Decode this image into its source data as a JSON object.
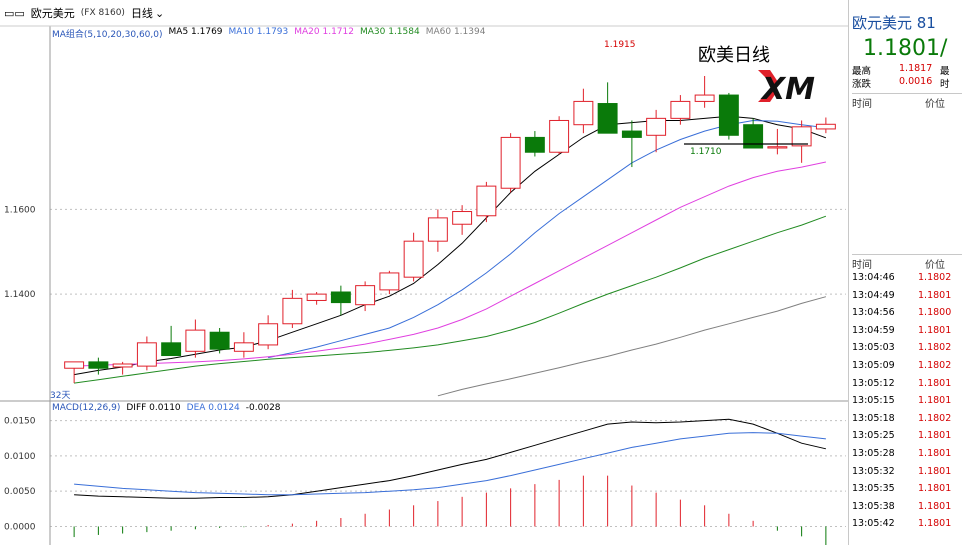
{
  "header": {
    "window_icon": "window-icon",
    "title": "欧元美元",
    "symbol": "(FX 8160)",
    "period": "日线"
  },
  "ma_legend": {
    "group_label": "MA组合(5,10,20,30,60,0)",
    "items": [
      {
        "label": "MA5 1.1769",
        "color": "#000000"
      },
      {
        "label": "MA10 1.1793",
        "color": "#3a6fd8"
      },
      {
        "label": "MA20 1.1712",
        "color": "#e040e0"
      },
      {
        "label": "MA30 1.1584",
        "color": "#228b22"
      },
      {
        "label": "MA60 1.1394",
        "color": "#808080"
      }
    ]
  },
  "macd_legend": {
    "group_label": "MACD(12,26,9)",
    "items": [
      {
        "label": "DIFF 0.0110",
        "color": "#000000"
      },
      {
        "label": "DEA 0.0124",
        "color": "#3a6fd8"
      },
      {
        "label": "-0.0028",
        "color": "#000000"
      }
    ]
  },
  "annotations": {
    "high_label": "1.1915",
    "low_label": "1.1710",
    "days_label": "32天",
    "overlay_title": "欧美日线",
    "logo_text": "XM"
  },
  "quote": {
    "name": "欧元美元 81",
    "price": "1.1801/",
    "high_label": "最高",
    "high_value": "1.1817",
    "high_extra": "最",
    "change_label": "涨跌",
    "change_value": "0.0016",
    "change_extra": "时",
    "col_time": "时间",
    "col_price": "价位"
  },
  "ticks": {
    "col_time": "时间",
    "col_price": "价位",
    "rows": [
      {
        "time": "13:04:46",
        "price": "1.1802"
      },
      {
        "time": "13:04:49",
        "price": "1.1801"
      },
      {
        "time": "13:04:56",
        "price": "1.1800"
      },
      {
        "time": "13:04:59",
        "price": "1.1801"
      },
      {
        "time": "13:05:03",
        "price": "1.1802"
      },
      {
        "time": "13:05:09",
        "price": "1.1802"
      },
      {
        "time": "13:05:12",
        "price": "1.1801"
      },
      {
        "time": "13:05:15",
        "price": "1.1801"
      },
      {
        "time": "13:05:18",
        "price": "1.1802"
      },
      {
        "time": "13:05:25",
        "price": "1.1801"
      },
      {
        "time": "13:05:28",
        "price": "1.1801"
      },
      {
        "time": "13:05:32",
        "price": "1.1801"
      },
      {
        "time": "13:05:35",
        "price": "1.1801"
      },
      {
        "time": "13:05:38",
        "price": "1.1801"
      },
      {
        "time": "13:05:42",
        "price": "1.1801"
      }
    ]
  },
  "colors": {
    "up": "#e0202a",
    "down": "#0a7a0a",
    "grid": "#c0c0c0"
  },
  "chart_data": [
    {
      "type": "candlestick",
      "title": "",
      "xlabel": "",
      "ylabel": "",
      "ylim": [
        1.115,
        1.2
      ],
      "yticks": [
        "1.1400",
        "1.1600"
      ],
      "grid": true,
      "candles": [
        {
          "o": 1.1225,
          "h": 1.124,
          "l": 1.119,
          "c": 1.124
        },
        {
          "o": 1.124,
          "h": 1.125,
          "l": 1.121,
          "c": 1.1225
        },
        {
          "o": 1.1228,
          "h": 1.124,
          "l": 1.121,
          "c": 1.1235
        },
        {
          "o": 1.123,
          "h": 1.13,
          "l": 1.122,
          "c": 1.1285
        },
        {
          "o": 1.1285,
          "h": 1.1325,
          "l": 1.126,
          "c": 1.1255
        },
        {
          "o": 1.1265,
          "h": 1.134,
          "l": 1.125,
          "c": 1.1315
        },
        {
          "o": 1.131,
          "h": 1.132,
          "l": 1.126,
          "c": 1.127
        },
        {
          "o": 1.1265,
          "h": 1.131,
          "l": 1.125,
          "c": 1.1285
        },
        {
          "o": 1.128,
          "h": 1.135,
          "l": 1.127,
          "c": 1.133
        },
        {
          "o": 1.133,
          "h": 1.141,
          "l": 1.132,
          "c": 1.139
        },
        {
          "o": 1.1385,
          "h": 1.1405,
          "l": 1.1375,
          "c": 1.14
        },
        {
          "o": 1.1405,
          "h": 1.142,
          "l": 1.135,
          "c": 1.138
        },
        {
          "o": 1.1375,
          "h": 1.143,
          "l": 1.136,
          "c": 1.142
        },
        {
          "o": 1.141,
          "h": 1.1455,
          "l": 1.14,
          "c": 1.145
        },
        {
          "o": 1.144,
          "h": 1.1545,
          "l": 1.143,
          "c": 1.1525
        },
        {
          "o": 1.1525,
          "h": 1.16,
          "l": 1.15,
          "c": 1.158
        },
        {
          "o": 1.1565,
          "h": 1.161,
          "l": 1.154,
          "c": 1.1595
        },
        {
          "o": 1.1585,
          "h": 1.1665,
          "l": 1.157,
          "c": 1.1655
        },
        {
          "o": 1.165,
          "h": 1.178,
          "l": 1.164,
          "c": 1.177
        },
        {
          "o": 1.177,
          "h": 1.1785,
          "l": 1.1725,
          "c": 1.1735
        },
        {
          "o": 1.1735,
          "h": 1.182,
          "l": 1.173,
          "c": 1.181
        },
        {
          "o": 1.18,
          "h": 1.1885,
          "l": 1.178,
          "c": 1.1855
        },
        {
          "o": 1.185,
          "h": 1.19,
          "l": 1.178,
          "c": 1.178
        },
        {
          "o": 1.1785,
          "h": 1.181,
          "l": 1.17,
          "c": 1.177
        },
        {
          "o": 1.1775,
          "h": 1.1835,
          "l": 1.1735,
          "c": 1.1815
        },
        {
          "o": 1.1815,
          "h": 1.187,
          "l": 1.18,
          "c": 1.1855
        },
        {
          "o": 1.1855,
          "h": 1.1915,
          "l": 1.184,
          "c": 1.187
        },
        {
          "o": 1.187,
          "h": 1.1875,
          "l": 1.1765,
          "c": 1.1775
        },
        {
          "o": 1.18,
          "h": 1.1815,
          "l": 1.1745,
          "c": 1.1745
        },
        {
          "o": 1.1745,
          "h": 1.179,
          "l": 1.173,
          "c": 1.1748
        },
        {
          "o": 1.175,
          "h": 1.181,
          "l": 1.171,
          "c": 1.1795
        },
        {
          "o": 1.179,
          "h": 1.1817,
          "l": 1.178,
          "c": 1.1801
        }
      ],
      "series": [
        {
          "name": "MA5",
          "values": [
            1.121,
            1.122,
            1.1228,
            1.124,
            1.1248,
            1.1258,
            1.1268,
            1.1275,
            1.129,
            1.131,
            1.133,
            1.135,
            1.1375,
            1.1395,
            1.1425,
            1.147,
            1.152,
            1.158,
            1.164,
            1.169,
            1.173,
            1.177,
            1.18,
            1.1805,
            1.181,
            1.181,
            1.1815,
            1.182,
            1.1815,
            1.18,
            1.179,
            1.1769
          ]
        },
        {
          "name": "MA10",
          "values": [
            null,
            null,
            null,
            null,
            null,
            null,
            null,
            null,
            1.125,
            1.1262,
            1.1275,
            1.129,
            1.1305,
            1.132,
            1.1345,
            1.1375,
            1.141,
            1.145,
            1.1495,
            1.1545,
            1.159,
            1.163,
            1.167,
            1.171,
            1.174,
            1.1765,
            1.1785,
            1.18,
            1.181,
            1.1808,
            1.18,
            1.1793
          ]
        },
        {
          "name": "MA20",
          "values": [
            1.123,
            1.1232,
            1.1234,
            1.1236,
            1.1238,
            1.124,
            1.1243,
            1.1247,
            1.1252,
            1.1258,
            1.1265,
            1.1273,
            1.1282,
            1.1293,
            1.1305,
            1.132,
            1.134,
            1.1365,
            1.1395,
            1.1425,
            1.1455,
            1.1485,
            1.1515,
            1.1545,
            1.1575,
            1.1605,
            1.163,
            1.1655,
            1.1675,
            1.169,
            1.17,
            1.1712
          ]
        },
        {
          "name": "MA30",
          "values": [
            1.119,
            1.1198,
            1.1206,
            1.1214,
            1.1222,
            1.123,
            1.1236,
            1.1241,
            1.1246,
            1.125,
            1.1254,
            1.1258,
            1.1262,
            1.1267,
            1.1273,
            1.128,
            1.129,
            1.13,
            1.1315,
            1.1333,
            1.1355,
            1.1378,
            1.14,
            1.142,
            1.144,
            1.1462,
            1.1485,
            1.1505,
            1.1525,
            1.1545,
            1.1563,
            1.1584
          ]
        },
        {
          "name": "MA60",
          "values": [
            null,
            null,
            null,
            null,
            null,
            null,
            null,
            null,
            null,
            null,
            null,
            null,
            null,
            null,
            null,
            1.116,
            1.1175,
            1.1188,
            1.12,
            1.1213,
            1.1226,
            1.124,
            1.1253,
            1.1268,
            1.1282,
            1.1298,
            1.1315,
            1.133,
            1.1345,
            1.136,
            1.1378,
            1.1394
          ]
        }
      ]
    },
    {
      "type": "macd",
      "title": "",
      "xlabel": "",
      "ylabel": "",
      "ylim": [
        -0.0005,
        0.0165
      ],
      "yticks": [
        "0.0000",
        "0.0050",
        "0.0100",
        "0.0150"
      ],
      "grid": true,
      "series": [
        {
          "name": "DIFF",
          "values": [
            0.0045,
            0.0043,
            0.0042,
            0.0041,
            0.004,
            0.004,
            0.0041,
            0.0041,
            0.0042,
            0.0045,
            0.005,
            0.0055,
            0.006,
            0.0065,
            0.0072,
            0.008,
            0.0088,
            0.0095,
            0.0105,
            0.0115,
            0.0125,
            0.0135,
            0.0145,
            0.0148,
            0.0147,
            0.0148,
            0.015,
            0.0152,
            0.0145,
            0.0132,
            0.0118,
            0.011
          ]
        },
        {
          "name": "DEA",
          "values": [
            0.006,
            0.0057,
            0.0054,
            0.0052,
            0.005,
            0.0048,
            0.0047,
            0.0046,
            0.0045,
            0.0045,
            0.0046,
            0.0047,
            0.0048,
            0.005,
            0.0052,
            0.0055,
            0.006,
            0.0065,
            0.0072,
            0.008,
            0.0088,
            0.0096,
            0.0104,
            0.0112,
            0.0118,
            0.0124,
            0.0128,
            0.0132,
            0.0133,
            0.0132,
            0.0128,
            0.0124
          ]
        },
        {
          "name": "MACD",
          "values": [
            -0.0015,
            -0.0012,
            -0.001,
            -0.0008,
            -0.0006,
            -0.0004,
            -0.0002,
            -0.0001,
            0.0002,
            0.0004,
            0.0008,
            0.0012,
            0.0018,
            0.0024,
            0.003,
            0.0036,
            0.0042,
            0.0048,
            0.0054,
            0.006,
            0.0066,
            0.0072,
            0.0072,
            0.0058,
            0.0048,
            0.0038,
            0.003,
            0.0018,
            0.0008,
            -0.0006,
            -0.0014,
            -0.0028
          ]
        }
      ]
    }
  ]
}
